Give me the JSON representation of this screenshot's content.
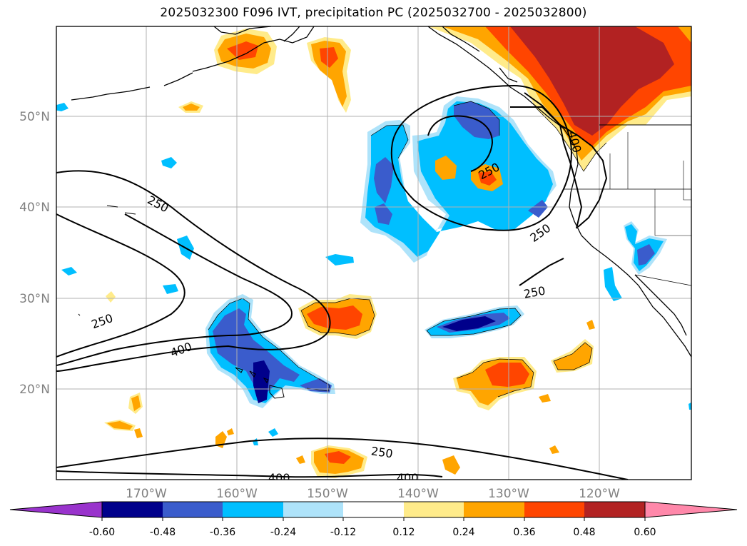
{
  "title": "2025032300 F096 IVT, precipitation PC (2025032700 - 2025032800)",
  "lat_labels": [
    "50°N",
    "40°N",
    "30°N",
    "20°N"
  ],
  "lon_labels": [
    "170°W",
    "160°W",
    "150°W",
    "140°W",
    "130°W",
    "120°W"
  ],
  "contour_labels": [
    "250",
    "250",
    "250",
    "250",
    "250",
    "400",
    "250",
    "400",
    "400",
    "400"
  ],
  "colorbar": {
    "ticks": [
      "-0.60",
      "-0.48",
      "-0.36",
      "-0.24",
      "-0.12",
      "0.12",
      "0.24",
      "0.36",
      "0.48",
      "0.60"
    ],
    "colors": [
      "#9933cc",
      "#00008b",
      "#3a5ccc",
      "#00bfff",
      "#aee3fa",
      "#ffffff",
      "#ffeb8a",
      "#ffa500",
      "#ff4500",
      "#b22222",
      "#ff88aa"
    ]
  },
  "colors": {
    "dark_blue": "#00008b",
    "med_blue": "#3a5ccc",
    "cyan": "#00bfff",
    "light_blue": "#aee3fa",
    "light_yellow": "#ffeb8a",
    "orange": "#ffa500",
    "red_orange": "#ff4500",
    "firebrick": "#b22222",
    "gridline": "#b0b0b0"
  }
}
